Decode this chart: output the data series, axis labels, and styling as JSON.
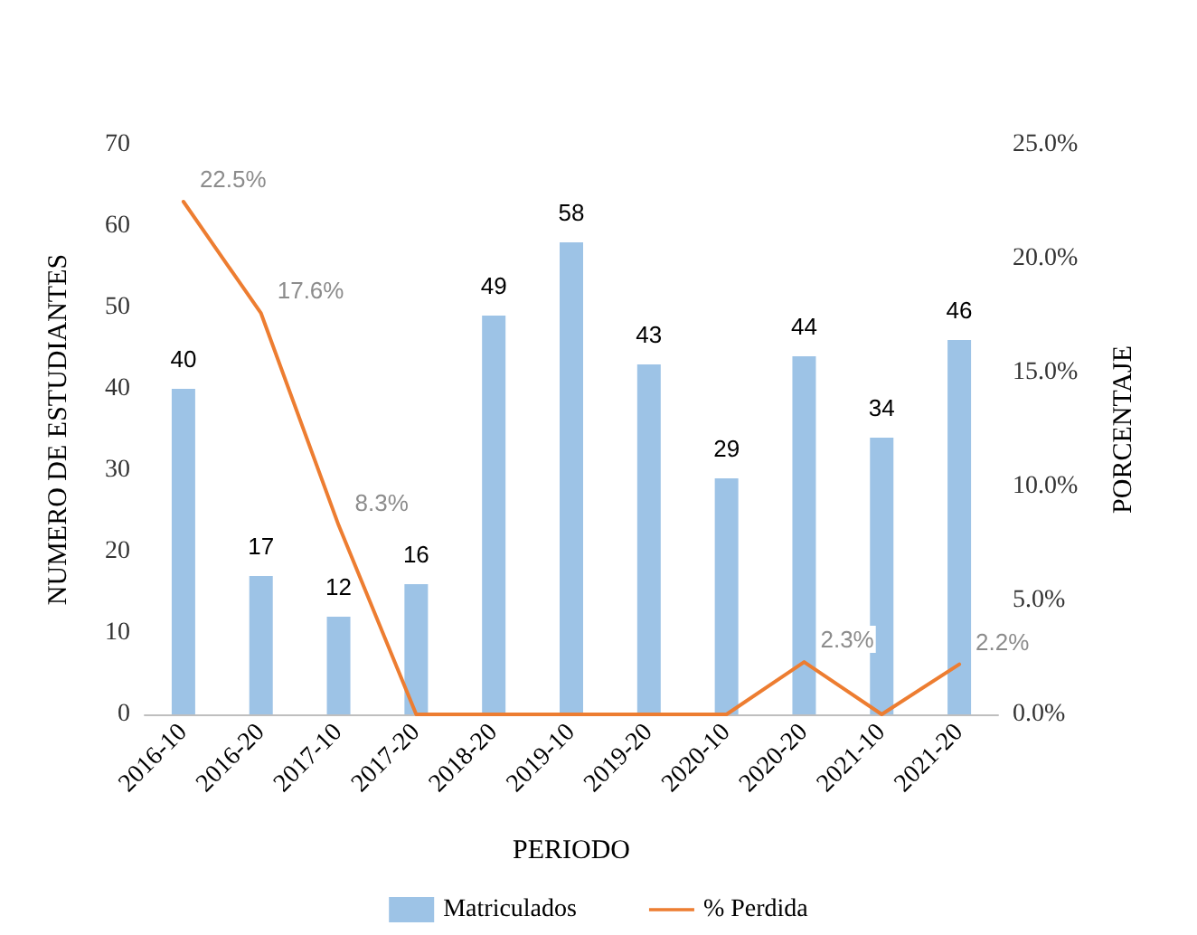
{
  "chart_data": {
    "type": "bar",
    "xlabel": "PERIODO",
    "ylabel": "NUMERO DE ESTUDIANTES",
    "y2label": "PORCENTAJE",
    "categories": [
      "2016-10",
      "2016-20",
      "2017-10",
      "2017-20",
      "2018-20",
      "2019-10",
      "2019-20",
      "2020-10",
      "2020-20",
      "2021-10",
      "2021-20"
    ],
    "series": [
      {
        "name": "Matriculados",
        "color": "#9dc3e6",
        "values": [
          40,
          17,
          12,
          16,
          49,
          58,
          43,
          29,
          44,
          34,
          46
        ],
        "value_labels": [
          "40",
          "17",
          "12",
          "16",
          "49",
          "58",
          "43",
          "29",
          "44",
          "34",
          "46"
        ]
      },
      {
        "name": "% Perdida",
        "type": "line",
        "axis": "y2",
        "color": "#ed7d31",
        "values": [
          22.5,
          17.6,
          8.3,
          0,
          0,
          0,
          0,
          0,
          2.3,
          0,
          2.2
        ],
        "value_labels": [
          "22.5%",
          "17.6%",
          "8.3%",
          null,
          null,
          null,
          null,
          null,
          "2.3%",
          null,
          "2.2%"
        ]
      }
    ],
    "ylim": [
      0,
      70
    ],
    "yticks": [
      0,
      10,
      20,
      30,
      40,
      50,
      60,
      70
    ],
    "y2lim": [
      0,
      25
    ],
    "y2ticks": [
      {
        "value": 0,
        "label": "0.0%"
      },
      {
        "value": 5,
        "label": "5.0%"
      },
      {
        "value": 10,
        "label": "10.0%"
      },
      {
        "value": 15,
        "label": "15.0%"
      },
      {
        "value": 20,
        "label": "20.0%"
      },
      {
        "value": 25,
        "label": "25.0%"
      }
    ],
    "grid": false,
    "legend": "bottom",
    "marker": "none",
    "line_style": "solid"
  }
}
